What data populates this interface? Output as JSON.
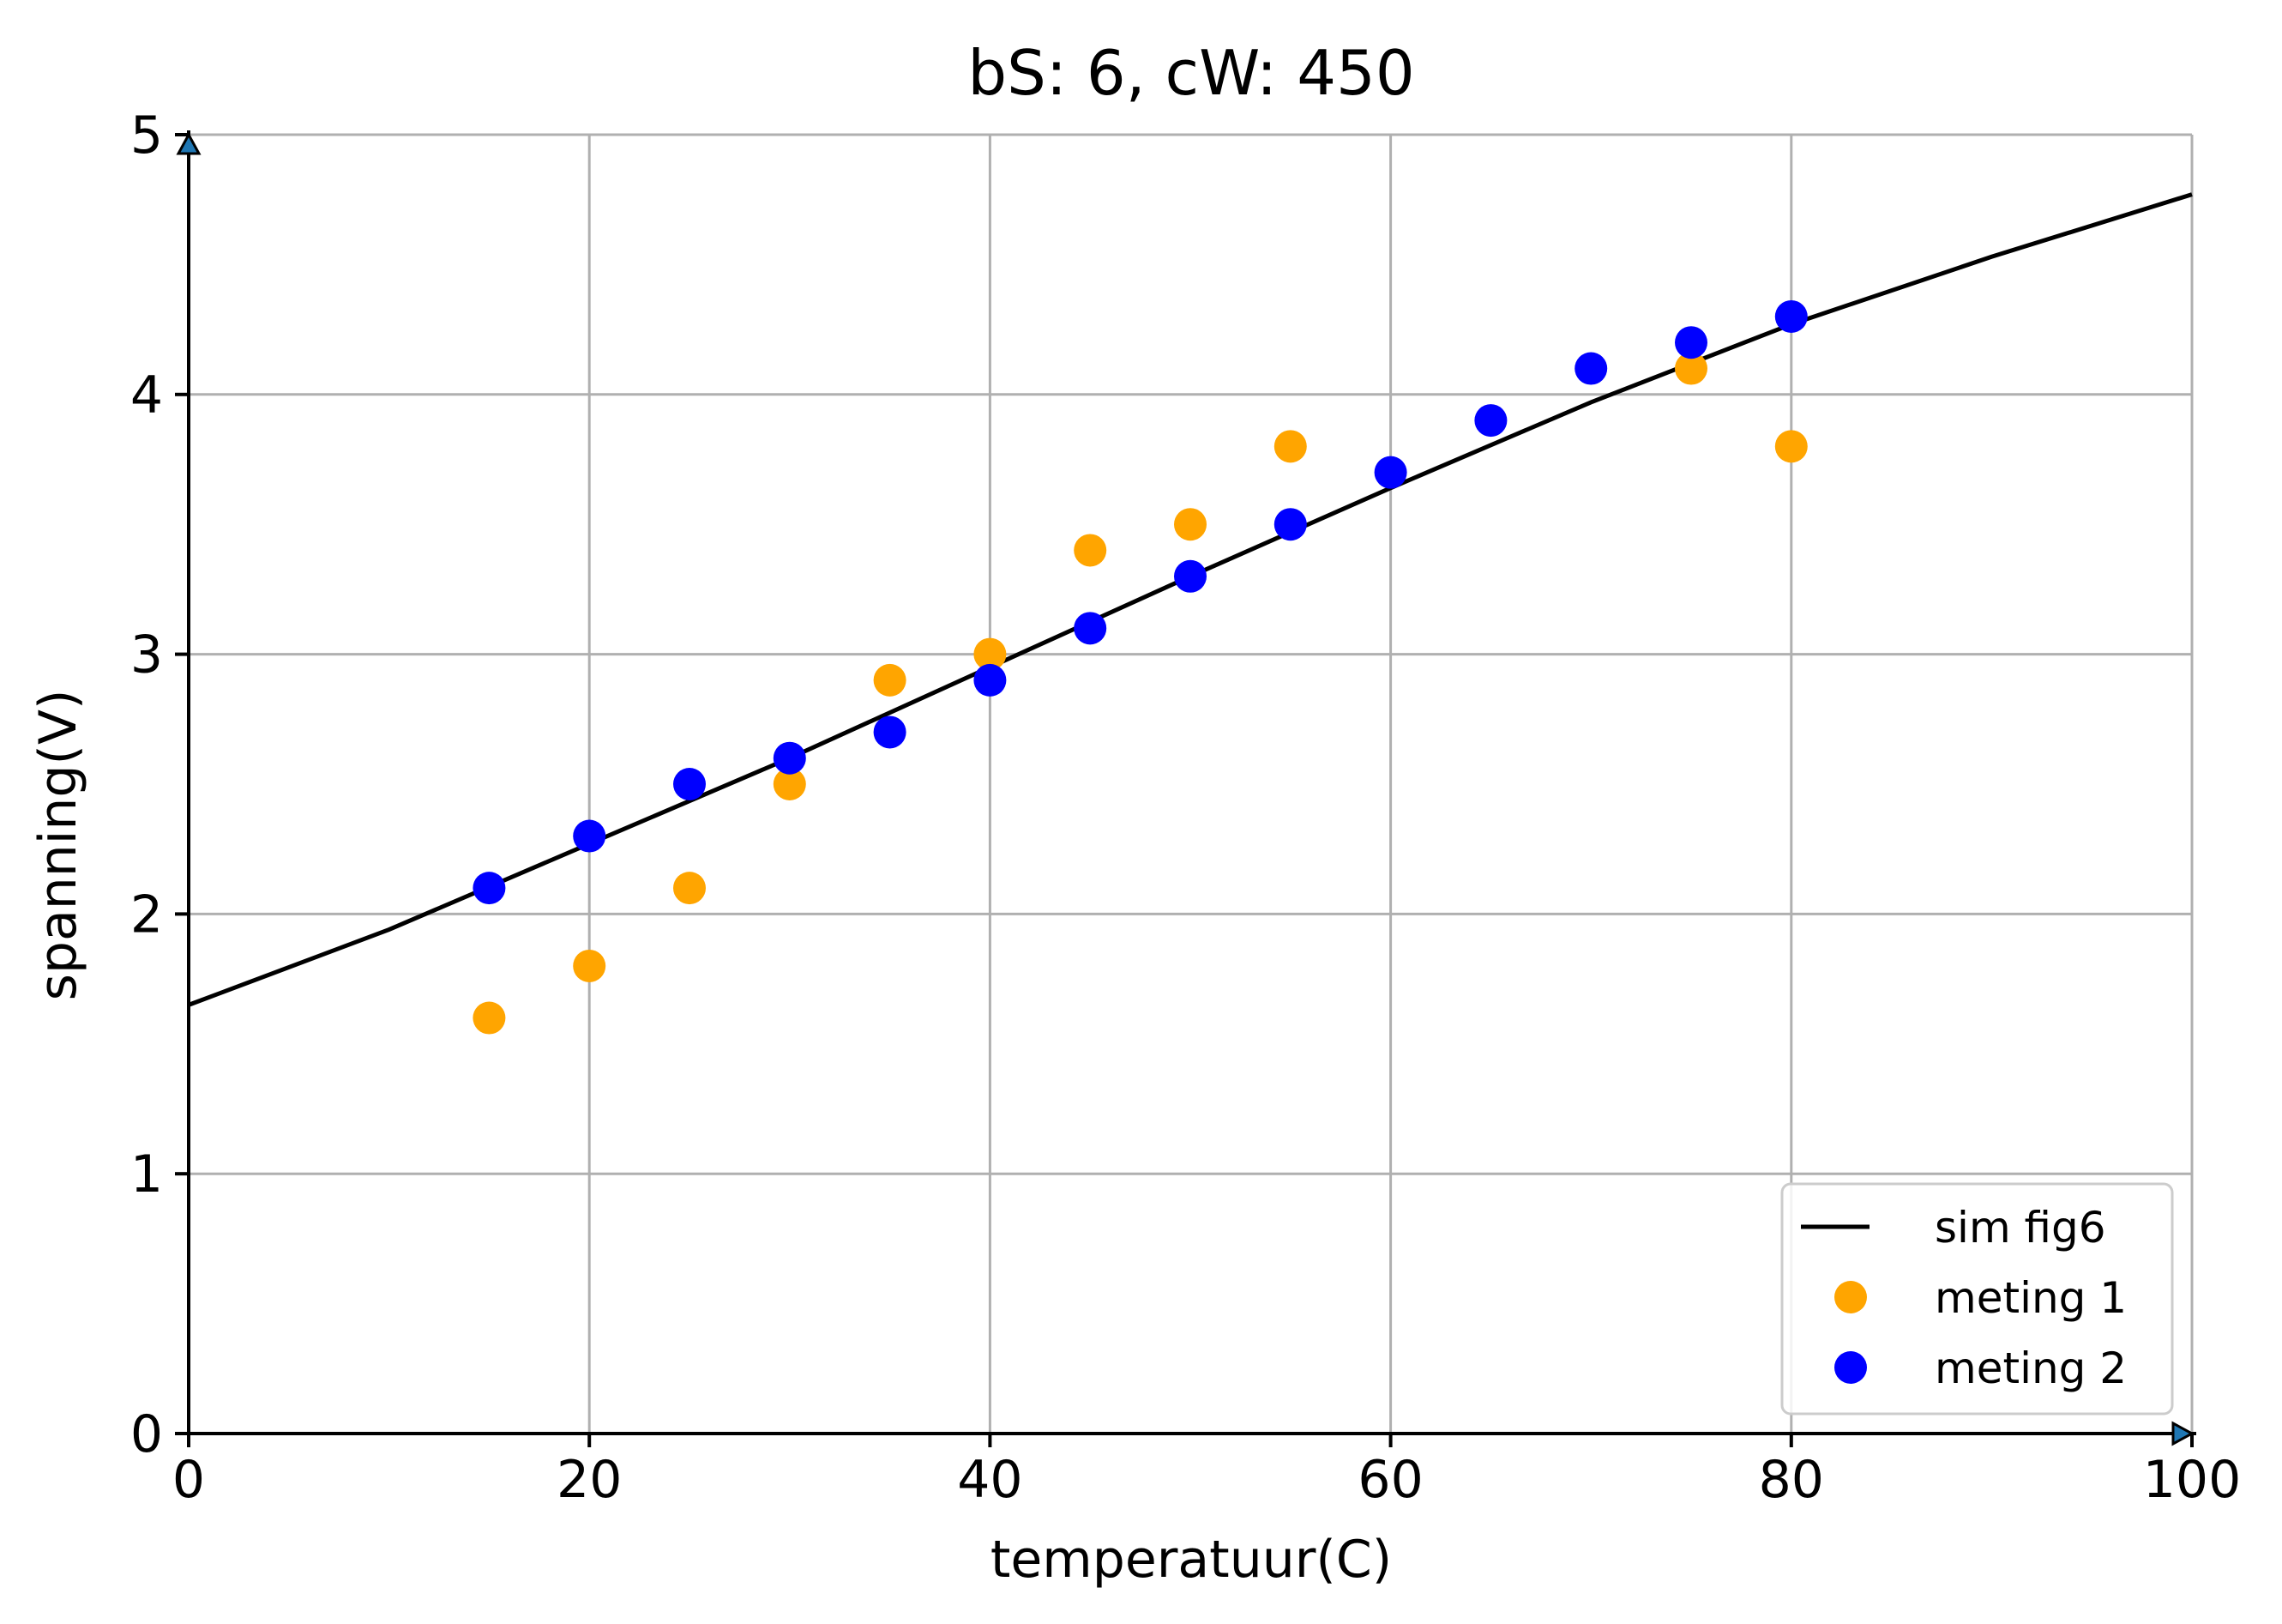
{
  "chart_data": {
    "type": "scatter",
    "title": "bS: 6, cW: 450",
    "xlabel": "temperatuur(C)",
    "ylabel": "spanning(V)",
    "xlim": [
      0,
      100
    ],
    "ylim": [
      0,
      5
    ],
    "xticks": [
      0,
      20,
      40,
      60,
      80,
      100
    ],
    "yticks": [
      0,
      1,
      2,
      3,
      4,
      5
    ],
    "grid": true,
    "legend_position": "bottom-right",
    "series": [
      {
        "name": "sim fig6",
        "type": "line",
        "color": "#000000",
        "x": [
          0,
          10,
          20,
          30,
          40,
          50,
          60,
          70,
          80,
          90,
          100
        ],
        "y": [
          1.65,
          1.94,
          2.27,
          2.6,
          2.95,
          3.3,
          3.64,
          3.97,
          4.27,
          4.53,
          4.77
        ]
      },
      {
        "name": "meting 1",
        "type": "scatter",
        "color": "#ffa500",
        "x": [
          15,
          20,
          25,
          30,
          35,
          40,
          45,
          50,
          55,
          75,
          80
        ],
        "y": [
          1.6,
          1.8,
          2.1,
          2.5,
          2.9,
          3.0,
          3.4,
          3.5,
          3.8,
          4.1,
          3.8
        ]
      },
      {
        "name": "meting 2",
        "type": "scatter",
        "color": "#0000ff",
        "x": [
          15,
          20,
          25,
          30,
          35,
          40,
          45,
          50,
          55,
          60,
          65,
          70,
          75,
          80
        ],
        "y": [
          2.1,
          2.3,
          2.5,
          2.6,
          2.7,
          2.9,
          3.1,
          3.3,
          3.5,
          3.7,
          3.9,
          4.1,
          4.2,
          4.3
        ]
      }
    ]
  }
}
